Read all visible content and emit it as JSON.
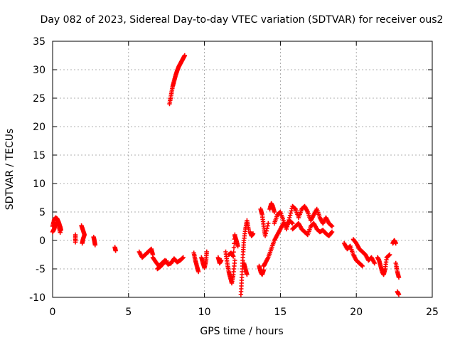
{
  "chart_data": {
    "type": "scatter",
    "title": "Day 082 of 2023, Sidereal Day-to-day VTEC variation (SDTVAR) for receiver ous2",
    "xlabel": "GPS time / hours",
    "ylabel": "SDTVAR / TECUs",
    "xlim": [
      0,
      25
    ],
    "ylim": [
      -10,
      35
    ],
    "xticks": [
      0,
      5,
      10,
      15,
      20,
      25
    ],
    "yticks": [
      -10,
      -5,
      0,
      5,
      10,
      15,
      20,
      25,
      30,
      35
    ],
    "grid": true,
    "marker": "+",
    "color": "#ff0000",
    "series": [
      {
        "name": "SDTVAR",
        "segments": [
          {
            "x": [
              0.0,
              0.1,
              0.2,
              0.3,
              0.4,
              0.5,
              0.55
            ],
            "y": [
              2.5,
              3.6,
              4.0,
              3.8,
              3.2,
              2.4,
              1.8
            ]
          },
          {
            "x": [
              0.0,
              0.1,
              0.2,
              0.3,
              0.4,
              0.5
            ],
            "y": [
              1.5,
              2.0,
              2.8,
              3.1,
              2.6,
              1.4
            ]
          },
          {
            "x": [
              1.5,
              1.5
            ],
            "y": [
              1.0,
              -0.3
            ]
          },
          {
            "x": [
              1.9,
              2.0,
              2.1,
              2.0,
              1.95
            ],
            "y": [
              2.6,
              1.8,
              1.0,
              0.2,
              -0.5
            ]
          },
          {
            "x": [
              2.7,
              2.75,
              2.8
            ],
            "y": [
              0.6,
              0.0,
              -0.8
            ]
          },
          {
            "x": [
              4.1,
              4.15
            ],
            "y": [
              -1.2,
              -1.8
            ]
          },
          {
            "x": [
              5.7,
              5.9,
              6.1,
              6.3,
              6.5,
              6.6
            ],
            "y": [
              -2.0,
              -3.0,
              -2.5,
              -2.0,
              -1.5,
              -2.5
            ]
          },
          {
            "x": [
              6.6,
              6.8,
              7.0,
              7.2,
              7.4,
              7.6,
              7.8,
              8.0,
              8.2,
              8.4,
              8.6
            ],
            "y": [
              -3.0,
              -3.8,
              -4.5,
              -4.0,
              -3.5,
              -4.2,
              -4.0,
              -3.2,
              -3.8,
              -3.5,
              -3.0
            ]
          },
          {
            "x": [
              6.9,
              7.1,
              7.3,
              7.5
            ],
            "y": [
              -5.0,
              -4.6,
              -4.0,
              -3.6
            ]
          },
          {
            "x": [
              7.7,
              7.8,
              7.9,
              8.0,
              8.1,
              8.2,
              8.3,
              8.4,
              8.5,
              8.6,
              8.7
            ],
            "y": [
              24.0,
              25.5,
              27.0,
              28.0,
              29.0,
              29.8,
              30.5,
              31.0,
              31.5,
              32.0,
              32.5
            ]
          },
          {
            "x": [
              9.3,
              9.4,
              9.5,
              9.6
            ],
            "y": [
              -2.2,
              -3.5,
              -4.5,
              -5.5
            ]
          },
          {
            "x": [
              9.8,
              9.9,
              10.0,
              10.1,
              10.15
            ],
            "y": [
              -3.0,
              -4.0,
              -4.8,
              -3.6,
              -2.0
            ]
          },
          {
            "x": [
              10.9,
              11.0,
              11.1
            ],
            "y": [
              -3.0,
              -4.0,
              -3.5
            ]
          },
          {
            "x": [
              11.4,
              11.5,
              11.6,
              11.7,
              11.8,
              11.9,
              12.0
            ],
            "y": [
              -2.0,
              -4.0,
              -5.5,
              -6.5,
              -7.5,
              -6.0,
              -3.5
            ]
          },
          {
            "x": [
              11.6,
              11.75,
              11.9,
              12.0
            ],
            "y": [
              -2.5,
              -2.2,
              -2.8,
              1.0
            ]
          },
          {
            "x": [
              12.0,
              12.1,
              12.2
            ],
            "y": [
              0.8,
              0.0,
              -1.0
            ]
          },
          {
            "x": [
              12.4,
              12.45,
              12.5,
              12.55,
              12.6,
              12.7,
              12.8,
              12.9
            ],
            "y": [
              -9.5,
              -7.0,
              -4.5,
              -2.0,
              0.0,
              2.0,
              3.5,
              2.0
            ]
          },
          {
            "x": [
              12.6,
              12.7,
              12.8
            ],
            "y": [
              -4.0,
              -5.0,
              -6.0
            ]
          },
          {
            "x": [
              13.0,
              13.1,
              13.2
            ],
            "y": [
              1.5,
              0.8,
              1.2
            ]
          },
          {
            "x": [
              13.6,
              13.7,
              13.8,
              13.9
            ],
            "y": [
              -4.5,
              -5.5,
              -6.0,
              -5.2
            ]
          },
          {
            "x": [
              13.9,
              14.0,
              14.2,
              14.4,
              14.6,
              14.8,
              15.0,
              15.2,
              15.4,
              15.6,
              15.8
            ],
            "y": [
              -4.5,
              -4.0,
              -3.0,
              -1.5,
              0.0,
              1.0,
              2.0,
              3.0,
              2.5,
              3.5,
              3.0
            ]
          },
          {
            "x": [
              13.7,
              13.8,
              13.9,
              14.0,
              14.2
            ],
            "y": [
              5.5,
              4.5,
              2.5,
              0.8,
              3.0
            ]
          },
          {
            "x": [
              14.3,
              14.4,
              14.5,
              14.6
            ],
            "y": [
              5.5,
              6.5,
              6.0,
              5.0
            ]
          },
          {
            "x": [
              14.6,
              14.8,
              15.0,
              15.2,
              15.4,
              15.6,
              15.8,
              16.0,
              16.2,
              16.4,
              16.6,
              16.8,
              17.0,
              17.2,
              17.4,
              17.6,
              17.8,
              18.0,
              18.2,
              18.4
            ],
            "y": [
              3.0,
              4.5,
              5.0,
              3.5,
              2.0,
              4.0,
              6.0,
              5.5,
              4.0,
              5.5,
              6.0,
              5.0,
              3.5,
              4.5,
              5.5,
              4.0,
              3.0,
              4.0,
              3.0,
              2.5
            ]
          },
          {
            "x": [
              15.8,
              16.0,
              16.2,
              16.4,
              16.6,
              16.8,
              17.0,
              17.2,
              17.4,
              17.6,
              17.8,
              18.0,
              18.2,
              18.4
            ],
            "y": [
              2.0,
              2.5,
              3.0,
              2.0,
              1.5,
              1.0,
              2.5,
              3.0,
              2.0,
              1.5,
              1.8,
              1.2,
              0.8,
              1.5
            ]
          },
          {
            "x": [
              19.2,
              19.4,
              19.6,
              19.8,
              20.0,
              20.2,
              20.4
            ],
            "y": [
              -0.5,
              -1.5,
              -1.0,
              -2.5,
              -3.5,
              -4.0,
              -4.5
            ]
          },
          {
            "x": [
              19.8,
              20.0,
              20.2,
              20.4,
              20.6,
              20.8,
              21.0,
              21.2
            ],
            "y": [
              0.2,
              -0.5,
              -1.5,
              -2.0,
              -2.5,
              -3.5,
              -3.0,
              -4.0
            ]
          },
          {
            "x": [
              21.4,
              21.5,
              21.6,
              21.7,
              21.8,
              21.9,
              22.0,
              22.2
            ],
            "y": [
              -3.0,
              -3.5,
              -4.5,
              -5.5,
              -6.0,
              -5.0,
              -3.0,
              -2.5
            ]
          },
          {
            "x": [
              22.4,
              22.5,
              22.6
            ],
            "y": [
              -0.5,
              0.0,
              -0.5
            ]
          },
          {
            "x": [
              22.6,
              22.7,
              22.8
            ],
            "y": [
              -4.0,
              -5.5,
              -6.5
            ]
          },
          {
            "x": [
              22.7,
              22.8
            ],
            "y": [
              -9.0,
              -9.5
            ]
          }
        ]
      }
    ]
  }
}
